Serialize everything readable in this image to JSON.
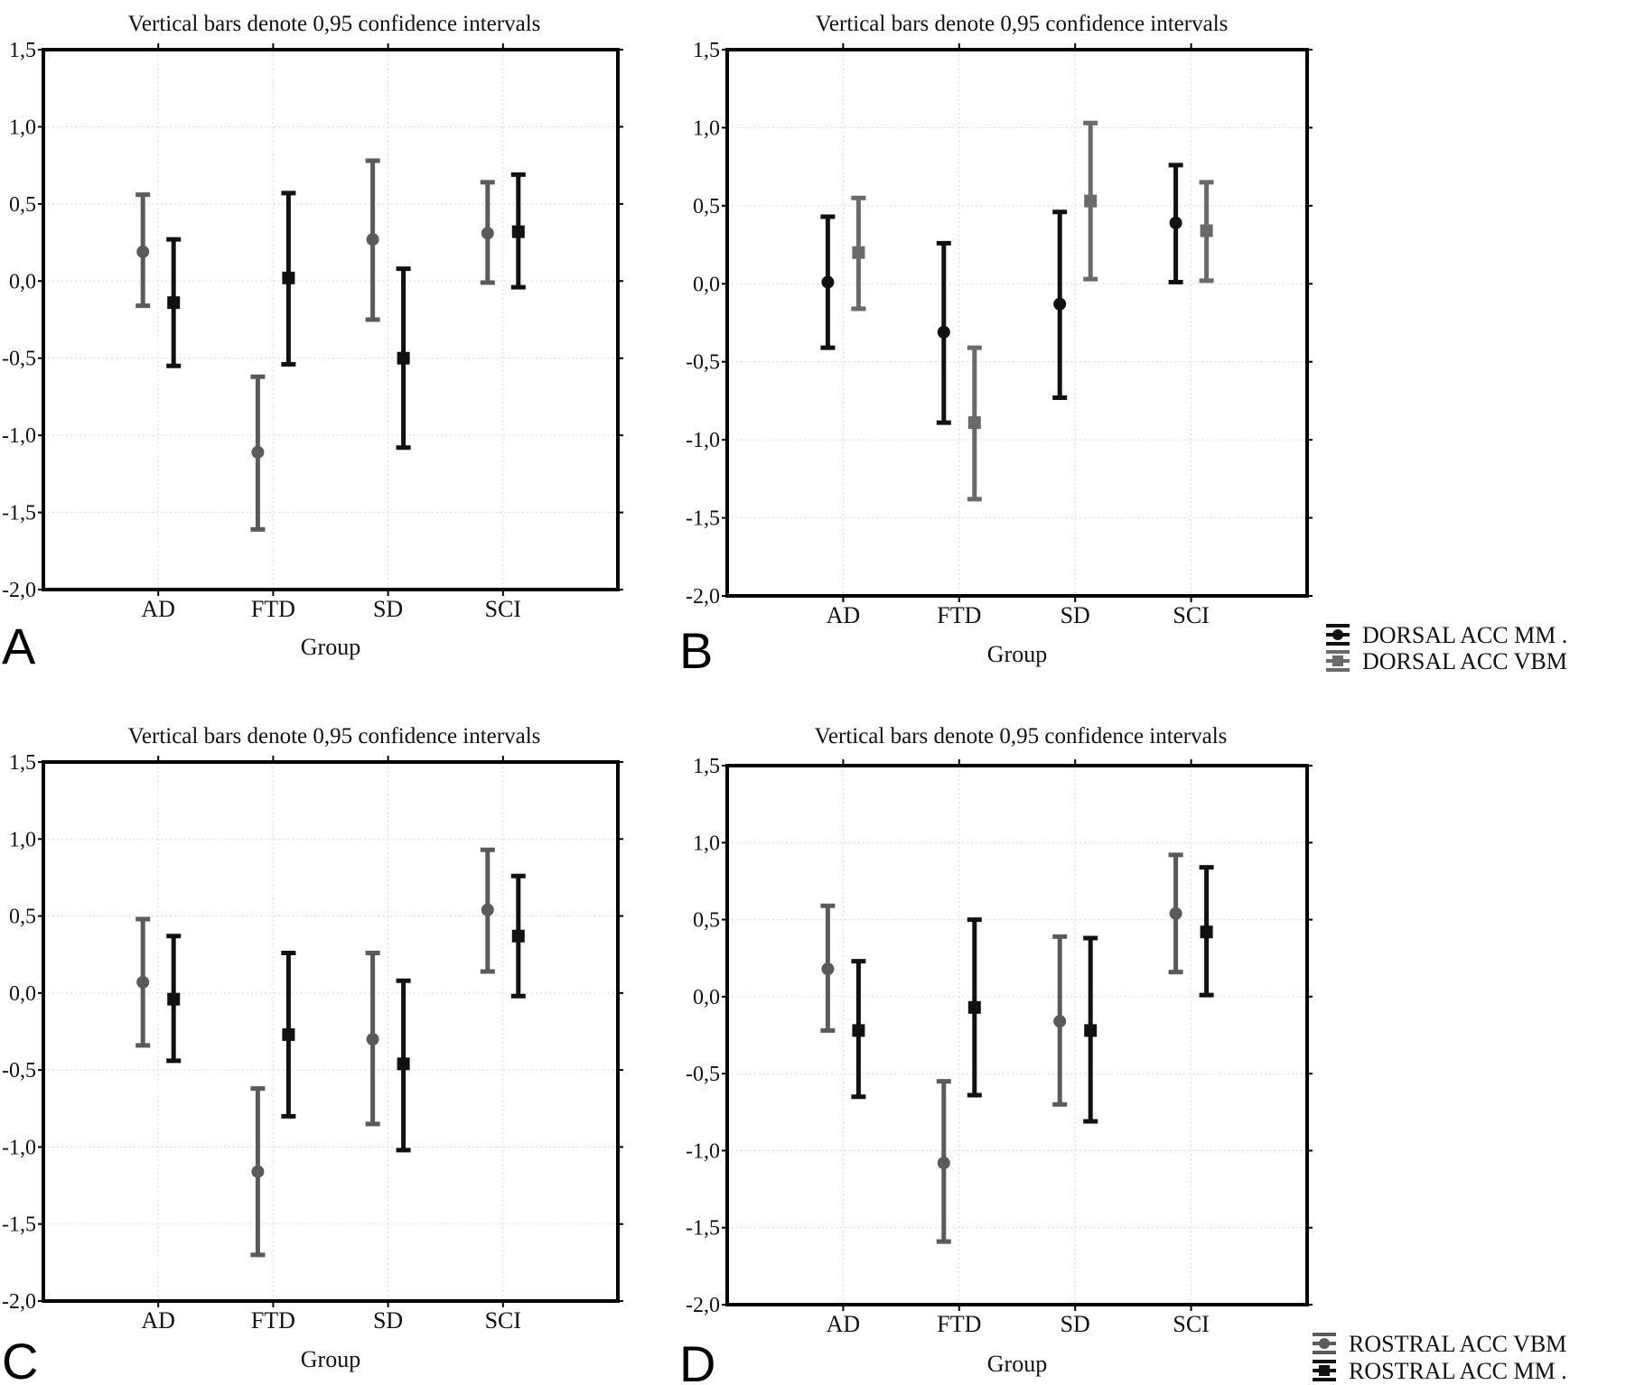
{
  "chart_data": [
    {
      "type": "errorbar",
      "panel_label": "A",
      "title": "Vertical bars denote 0,95 confidence intervals",
      "xlabel": "Group",
      "ylabel": "",
      "categories": [
        "AD",
        "FTD",
        "SD",
        "SCI"
      ],
      "ylim": [
        -2.0,
        1.5
      ],
      "yticks": [
        "1,5",
        "1,0",
        "0,5",
        "0,0",
        "-0,5",
        "-1,0",
        "-1,5",
        "-2,0"
      ],
      "grid": true,
      "legend": null,
      "series": [
        {
          "marker": "circle",
          "color": "#5a5a5a",
          "values": [
            0.19,
            -1.11,
            0.27,
            0.31
          ],
          "lower": [
            -0.16,
            -1.61,
            -0.25,
            -0.01
          ],
          "upper": [
            0.56,
            -0.62,
            0.78,
            0.64
          ]
        },
        {
          "marker": "square",
          "color": "#111111",
          "values": [
            -0.14,
            0.02,
            -0.5,
            0.32
          ],
          "lower": [
            -0.55,
            -0.54,
            -1.08,
            -0.04
          ],
          "upper": [
            0.27,
            0.57,
            0.08,
            0.69
          ]
        }
      ]
    },
    {
      "type": "errorbar",
      "panel_label": "B",
      "title": "Vertical bars denote 0,95 confidence intervals",
      "xlabel": "Group",
      "ylabel": "",
      "categories": [
        "AD",
        "FTD",
        "SD",
        "SCI"
      ],
      "ylim": [
        -2.0,
        1.5
      ],
      "yticks": [
        "1,5",
        "1,0",
        "0,5",
        "0,0",
        "-0,5",
        "-1,0",
        "-1,5",
        "-2,0"
      ],
      "grid": true,
      "legend": {
        "position": "bottom-right",
        "entries": [
          "DORSAL ACC  MM  .",
          "DORSAL ACC  VBM"
        ]
      },
      "series": [
        {
          "name": "DORSAL ACC  MM  .",
          "marker": "circle",
          "color": "#111111",
          "values": [
            0.01,
            -0.31,
            -0.13,
            0.39
          ],
          "lower": [
            -0.41,
            -0.89,
            -0.73,
            0.01
          ],
          "upper": [
            0.43,
            0.26,
            0.46,
            0.76
          ]
        },
        {
          "name": "DORSAL ACC  VBM",
          "marker": "square",
          "color": "#6a6a6a",
          "values": [
            0.2,
            -0.89,
            0.53,
            0.34
          ],
          "lower": [
            -0.16,
            -1.38,
            0.03,
            0.02
          ],
          "upper": [
            0.55,
            -0.41,
            1.03,
            0.65
          ]
        }
      ]
    },
    {
      "type": "errorbar",
      "panel_label": "C",
      "title": "Vertical bars denote 0,95 confidence intervals",
      "xlabel": "Group",
      "ylabel": "",
      "categories": [
        "AD",
        "FTD",
        "SD",
        "SCI"
      ],
      "ylim": [
        -2.0,
        1.5
      ],
      "yticks": [
        "1,5",
        "1,0",
        "0,5",
        "0,0",
        "-0,5",
        "-1,0",
        "-1,5",
        "-2,0"
      ],
      "grid": true,
      "legend": null,
      "series": [
        {
          "marker": "circle",
          "color": "#5a5a5a",
          "values": [
            0.07,
            -1.16,
            -0.3,
            0.54
          ],
          "lower": [
            -0.34,
            -1.7,
            -0.85,
            0.14
          ],
          "upper": [
            0.48,
            -0.62,
            0.26,
            0.93
          ]
        },
        {
          "marker": "square",
          "color": "#111111",
          "values": [
            -0.04,
            -0.27,
            -0.46,
            0.37
          ],
          "lower": [
            -0.44,
            -0.8,
            -1.02,
            -0.02
          ],
          "upper": [
            0.37,
            0.26,
            0.08,
            0.76
          ]
        }
      ]
    },
    {
      "type": "errorbar",
      "panel_label": "D",
      "title": "Vertical bars denote 0,95 confidence intervals",
      "xlabel": "Group",
      "ylabel": "",
      "categories": [
        "AD",
        "FTD",
        "SD",
        "SCI"
      ],
      "ylim": [
        -2.0,
        1.5
      ],
      "yticks": [
        "1,5",
        "1,0",
        "0,5",
        "0,0",
        "-0,5",
        "-1,0",
        "-1,5",
        "-2,0"
      ],
      "grid": true,
      "legend": {
        "position": "bottom-right",
        "entries": [
          "ROSTRAL ACC  VBM",
          "ROSTRAL ACC  MM  ."
        ]
      },
      "series": [
        {
          "name": "ROSTRAL ACC  VBM",
          "marker": "circle",
          "color": "#5a5a5a",
          "values": [
            0.18,
            -1.08,
            -0.16,
            0.54
          ],
          "lower": [
            -0.22,
            -1.59,
            -0.7,
            0.16
          ],
          "upper": [
            0.59,
            -0.55,
            0.39,
            0.92
          ]
        },
        {
          "name": "ROSTRAL ACC  MM  .",
          "marker": "square",
          "color": "#111111",
          "values": [
            -0.22,
            -0.07,
            -0.22,
            0.42
          ],
          "lower": [
            -0.65,
            -0.64,
            -0.81,
            0.01
          ],
          "upper": [
            0.23,
            0.5,
            0.38,
            0.84
          ]
        }
      ]
    }
  ]
}
